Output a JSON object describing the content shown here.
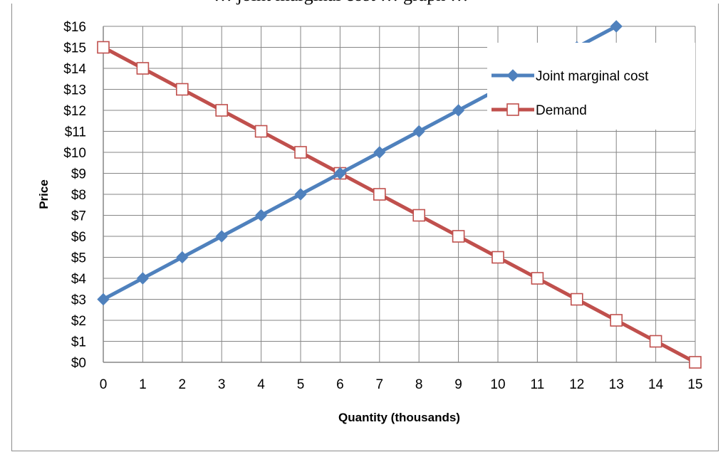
{
  "page": {
    "top_fragment": "… joint marginal cost … graph …"
  },
  "chart_data": {
    "type": "line",
    "x": [
      0,
      1,
      2,
      3,
      4,
      5,
      6,
      7,
      8,
      9,
      10,
      11,
      12,
      13,
      14,
      15
    ],
    "x_tick_labels": [
      "0",
      "1",
      "2",
      "3",
      "4",
      "5",
      "6",
      "7",
      "8",
      "9",
      "10",
      "11",
      "12",
      "13",
      "14",
      "15"
    ],
    "y_tick_labels": [
      "$0",
      "$1",
      "$2",
      "$3",
      "$4",
      "$5",
      "$6",
      "$7",
      "$8",
      "$9",
      "$10",
      "$11",
      "$12",
      "$13",
      "$14",
      "$15",
      "$16"
    ],
    "xlim": [
      0,
      15
    ],
    "ylim": [
      0,
      16
    ],
    "xlabel": "Quantity (thousands)",
    "ylabel": "Price",
    "grid": true,
    "legend_position": "top-right",
    "series": [
      {
        "name": "Joint marginal cost",
        "color": "#4f81bd",
        "marker": "diamond",
        "x": [
          0,
          1,
          2,
          3,
          4,
          5,
          6,
          7,
          8,
          9,
          10,
          11,
          12,
          13
        ],
        "values": [
          3,
          4,
          5,
          6,
          7,
          8,
          9,
          10,
          11,
          12,
          13,
          14,
          15,
          16
        ]
      },
      {
        "name": "Demand",
        "color": "#c0504d",
        "marker": "square-open",
        "x": [
          0,
          1,
          2,
          3,
          4,
          5,
          6,
          7,
          8,
          9,
          10,
          11,
          12,
          13,
          14,
          15
        ],
        "values": [
          15,
          14,
          13,
          12,
          11,
          10,
          9,
          8,
          7,
          6,
          5,
          4,
          3,
          2,
          1,
          0
        ]
      }
    ]
  }
}
